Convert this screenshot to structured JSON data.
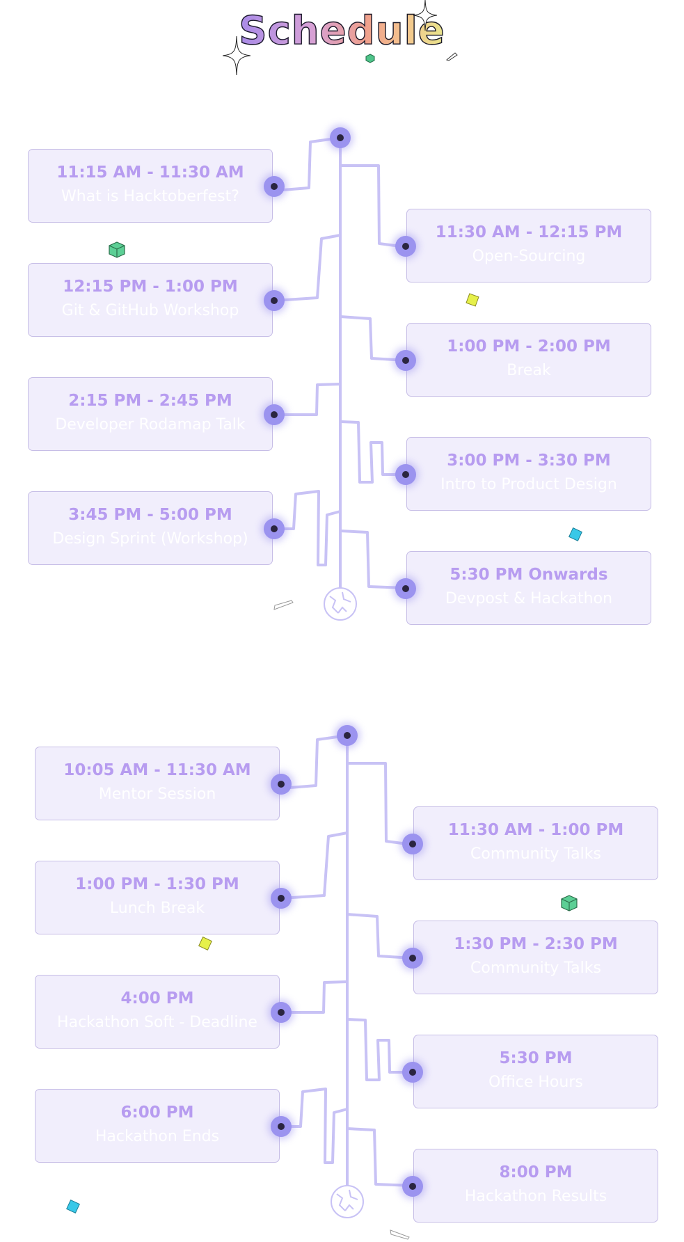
{
  "page": {
    "title": "Schedule"
  },
  "days": [
    {
      "events": [
        {
          "time": "11:15 AM - 11:30 AM",
          "topic": "What is Hacktoberfest?"
        },
        {
          "time": "11:30 AM - 12:15 PM",
          "topic": "Open-Sourcing"
        },
        {
          "time": "12:15 PM - 1:00 PM",
          "topic": "Git & GitHub Workshop"
        },
        {
          "time": "1:00 PM - 2:00 PM",
          "topic": "Break"
        },
        {
          "time": "2:15 PM - 2:45 PM",
          "topic": "Developer Rodamap Talk"
        },
        {
          "time": "3:00 PM - 3:30 PM",
          "topic": "Intro to Product Design"
        },
        {
          "time": "3:45 PM - 5:00 PM",
          "topic": "Design Sprint (Workshop)"
        },
        {
          "time": "5:30 PM Onwards",
          "topic": "Devpost & Hackathon"
        }
      ]
    },
    {
      "events": [
        {
          "time": "10:05 AM - 11:30 AM",
          "topic": "Mentor Session"
        },
        {
          "time": "11:30 AM - 1:00 PM",
          "topic": "Community Talks"
        },
        {
          "time": "1:00 PM - 1:30 PM",
          "topic": "Lunch Break"
        },
        {
          "time": "1:30 PM - 2:30 PM",
          "topic": "Community Talks"
        },
        {
          "time": "4:00 PM",
          "topic": "Hackathon Soft - Deadline"
        },
        {
          "time": "5:30 PM",
          "topic": "Office Hours"
        },
        {
          "time": "6:00 PM",
          "topic": "Hackathon Ends"
        },
        {
          "time": "8:00 PM",
          "topic": "Hackathon Results"
        }
      ]
    }
  ],
  "colors": {
    "card_bg": "#f1eefc",
    "card_border": "#c6bde6",
    "time_text": "#b79cf0",
    "topic_text": "#ffffff",
    "line": "#c8c2f5",
    "dot": "#9b93ef",
    "dot_center": "#2b2540"
  },
  "icons": [
    "sparkle-icon",
    "globe-icon",
    "cube-icon",
    "diamond-icon",
    "pencil-icon"
  ]
}
